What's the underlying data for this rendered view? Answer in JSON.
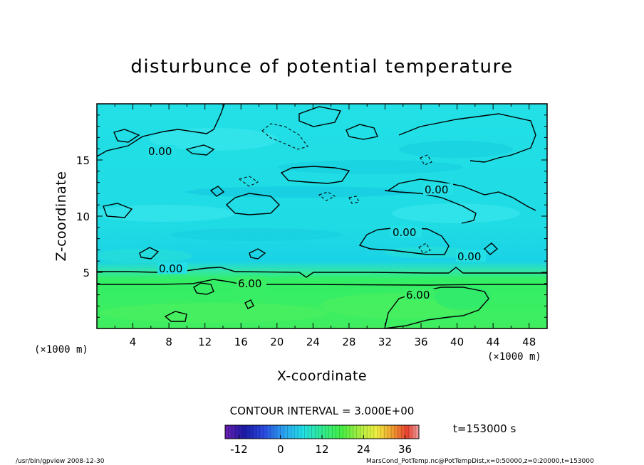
{
  "chart_data": {
    "type": "heatmap",
    "title": "disturbunce of potential temperature",
    "xlabel": "X-coordinate",
    "ylabel": "Z-coordinate",
    "x_unit_left": "(×1000 m)",
    "x_unit_right": "(×1000 m)",
    "xlim": [
      0,
      50
    ],
    "ylim": [
      0,
      20
    ],
    "x_ticks": [
      "4",
      "8",
      "12",
      "16",
      "20",
      "24",
      "28",
      "32",
      "36",
      "40",
      "44",
      "48"
    ],
    "y_ticks": [
      "5",
      "10",
      "15"
    ],
    "contour_labels": [
      "0.00",
      "0.00",
      "0.00",
      "0.00",
      "0.00",
      "6.00",
      "6.00"
    ],
    "contour_interval_text": "CONTOUR INTERVAL = 3.000E+00",
    "time_text": "t=153000 s",
    "colorbar": {
      "ticks": [
        "-12",
        "0",
        "12",
        "24",
        "36"
      ],
      "range": [
        -16,
        40
      ]
    },
    "footer_left": "/usr/bin/gpview   2008-12-30",
    "footer_right": "MarsCond_PotTemp.nc@PotTempDist,x=0:50000,z=0:20000,t=153000"
  },
  "colors": {
    "upper_field": "#22e0e6",
    "upper_field_light": "#3ee8ee",
    "upper_field_dark": "#18d6e2",
    "transition_band": "#33e6a8",
    "lower_field": "#33ee66",
    "lower_field_light": "#55f266",
    "contour": "#000000"
  }
}
